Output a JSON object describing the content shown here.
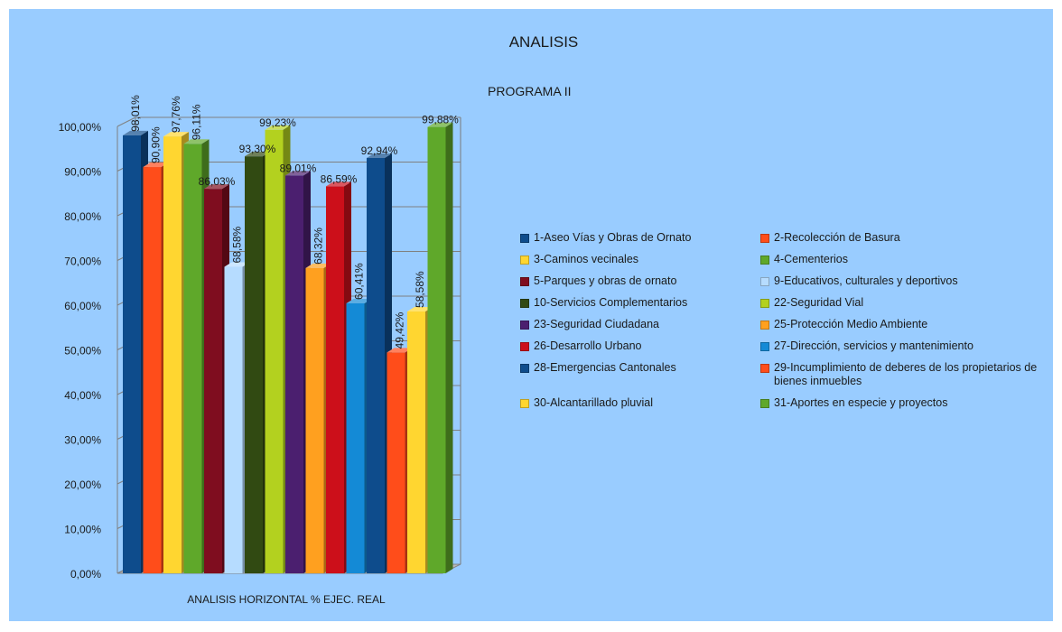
{
  "chart_data": {
    "type": "bar",
    "title": "ANALISIS",
    "subtitle": "PROGRAMA II",
    "xlabel": "ANALISIS HORIZONTAL % EJEC. REAL",
    "ylabel": "",
    "ylim": [
      0,
      100
    ],
    "yticks": [
      "0,00%",
      "10,00%",
      "20,00%",
      "30,00%",
      "40,00%",
      "50,00%",
      "60,00%",
      "70,00%",
      "80,00%",
      "90,00%",
      "100,00%"
    ],
    "grid": true,
    "legend_position": "right",
    "series": [
      {
        "name": "1-Aseo Vías y Obras de Ornato",
        "value": 98.01,
        "label": "98,01%",
        "color": "#0e4c8c"
      },
      {
        "name": "2-Recolección de Basura",
        "value": 90.9,
        "label": "90,90%",
        "color": "#ff4d1a"
      },
      {
        "name": "3-Caminos vecinales",
        "value": 97.76,
        "label": "97,76%",
        "color": "#ffd630"
      },
      {
        "name": "4-Cementerios",
        "value": 96.11,
        "label": "96,11%",
        "color": "#5fa82a"
      },
      {
        "name": "5-Parques y obras de ornato",
        "value": 86.03,
        "label": "86,03%",
        "color": "#7f0d1f"
      },
      {
        "name": "9-Educativos, culturales y deportivos",
        "value": 68.58,
        "label": "68,58%",
        "color": "#b6dcff"
      },
      {
        "name": "10-Servicios Complementarios",
        "value": 93.3,
        "label": "93,30%",
        "color": "#314a12"
      },
      {
        "name": "22-Seguridad Vial",
        "value": 99.23,
        "label": "99,23%",
        "color": "#b3d11f"
      },
      {
        "name": "23-Seguridad Ciudadana",
        "value": 89.01,
        "label": "89,01%",
        "color": "#4b1f6f"
      },
      {
        "name": "25-Protección Medio Ambiente",
        "value": 68.32,
        "label": "68,32%",
        "color": "#ffa01f"
      },
      {
        "name": "26-Desarrollo Urbano",
        "value": 86.59,
        "label": "86,59%",
        "color": "#cc0f1a"
      },
      {
        "name": "27-Dirección, servicios y mantenimiento",
        "value": 60.41,
        "label": "60,41%",
        "color": "#148ad6"
      },
      {
        "name": "28-Emergencias Cantonales",
        "value": 92.94,
        "label": "92,94%",
        "color": "#0e4c8c"
      },
      {
        "name": "29-Incumplimiento de deberes de los propietarios de bienes inmuebles",
        "value": 49.42,
        "label": "49,42%",
        "color": "#ff4d1a"
      },
      {
        "name": "30-Alcantarillado pluvial",
        "value": 58.58,
        "label": "58,58%",
        "color": "#ffd630"
      },
      {
        "name": "31-Aportes en especie y proyectos",
        "value": 99.88,
        "label": "99,88%",
        "color": "#5fa82a"
      }
    ],
    "rotated_labels": [
      true,
      true,
      true,
      true,
      false,
      true,
      false,
      false,
      false,
      true,
      false,
      true,
      false,
      true,
      true,
      false
    ]
  }
}
